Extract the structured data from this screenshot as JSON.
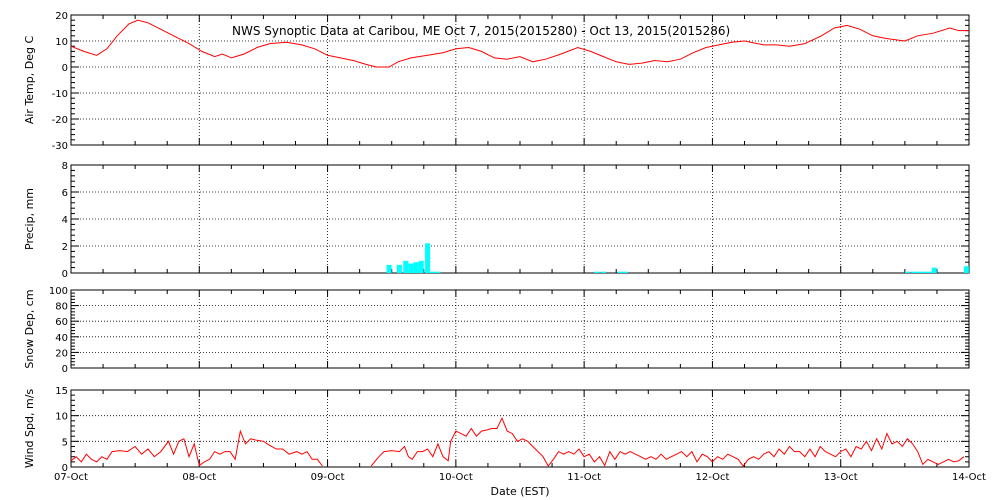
{
  "chart_data": {
    "title": "NWS Synoptic Data at Caribou, ME   Oct  7, 2015(2015280) - Oct 13, 2015(2015286)",
    "xlabel": "Date (EST)",
    "x_range_days": [
      0,
      7
    ],
    "x_tick_labels": [
      "07-Oct",
      "08-Oct",
      "09-Oct",
      "10-Oct",
      "11-Oct",
      "12-Oct",
      "13-Oct",
      "14-Oct"
    ],
    "panels": [
      {
        "id": "air_temp",
        "type": "line",
        "ylabel": "Air Temp, Deg C",
        "ylim": [
          -30,
          20
        ],
        "yticks": [
          20,
          10,
          0,
          -10,
          -20,
          -30
        ],
        "ytick_labels": [
          "20",
          "10",
          "0",
          "-10",
          "-20",
          "-30"
        ],
        "color": "#ff0000",
        "points": [
          [
            0.0,
            8
          ],
          [
            0.1,
            6
          ],
          [
            0.2,
            4.5
          ],
          [
            0.28,
            7
          ],
          [
            0.36,
            12
          ],
          [
            0.45,
            16.5
          ],
          [
            0.52,
            18
          ],
          [
            0.6,
            17
          ],
          [
            0.7,
            14.5
          ],
          [
            0.8,
            12
          ],
          [
            0.92,
            9
          ],
          [
            1.02,
            6
          ],
          [
            1.12,
            4
          ],
          [
            1.18,
            5
          ],
          [
            1.25,
            3.5
          ],
          [
            1.35,
            5
          ],
          [
            1.45,
            7.5
          ],
          [
            1.55,
            9
          ],
          [
            1.68,
            9.5
          ],
          [
            1.8,
            8.5
          ],
          [
            1.9,
            7
          ],
          [
            2.0,
            4.5
          ],
          [
            2.1,
            3.5
          ],
          [
            2.2,
            2.5
          ],
          [
            2.3,
            1
          ],
          [
            2.38,
            0
          ],
          [
            2.48,
            0
          ],
          [
            2.55,
            2
          ],
          [
            2.65,
            3.5
          ],
          [
            2.78,
            4.5
          ],
          [
            2.9,
            5.5
          ],
          [
            3.0,
            7
          ],
          [
            3.1,
            7.5
          ],
          [
            3.2,
            6
          ],
          [
            3.3,
            3.5
          ],
          [
            3.4,
            3
          ],
          [
            3.5,
            4
          ],
          [
            3.6,
            2
          ],
          [
            3.7,
            3
          ],
          [
            3.82,
            5
          ],
          [
            3.95,
            7.5
          ],
          [
            4.05,
            6
          ],
          [
            4.15,
            4
          ],
          [
            4.25,
            2
          ],
          [
            4.35,
            1
          ],
          [
            4.45,
            1.5
          ],
          [
            4.55,
            2.5
          ],
          [
            4.65,
            2
          ],
          [
            4.75,
            3
          ],
          [
            4.85,
            5.5
          ],
          [
            4.95,
            7.5
          ],
          [
            5.05,
            8.5
          ],
          [
            5.15,
            9.5
          ],
          [
            5.25,
            10
          ],
          [
            5.4,
            8.5
          ],
          [
            5.5,
            8.5
          ],
          [
            5.6,
            8
          ],
          [
            5.72,
            9
          ],
          [
            5.85,
            12
          ],
          [
            5.95,
            15
          ],
          [
            6.05,
            16
          ],
          [
            6.15,
            14.5
          ],
          [
            6.25,
            12
          ],
          [
            6.35,
            11
          ],
          [
            6.5,
            10
          ],
          [
            6.6,
            12
          ],
          [
            6.72,
            13
          ],
          [
            6.85,
            15
          ],
          [
            6.92,
            14
          ],
          [
            7.0,
            14
          ]
        ]
      },
      {
        "id": "precip",
        "type": "bar",
        "ylabel": "Precip, mm",
        "ylim": [
          0,
          8
        ],
        "yticks": [
          8,
          6,
          4,
          2,
          0
        ],
        "ytick_labels": [
          "8",
          "6",
          "4",
          "2",
          "0"
        ],
        "color": "#00ffff",
        "bar_width_days": 0.0417,
        "bars": [
          [
            2.46,
            0.6
          ],
          [
            2.54,
            0.6
          ],
          [
            2.59,
            0.9
          ],
          [
            2.63,
            0.7
          ],
          [
            2.67,
            0.8
          ],
          [
            2.71,
            0.9
          ],
          [
            2.76,
            2.2
          ],
          [
            2.8,
            0.1
          ],
          [
            2.84,
            0.1
          ],
          [
            4.08,
            0.1
          ],
          [
            4.13,
            0.1
          ],
          [
            4.26,
            0.1
          ],
          [
            4.3,
            0.1
          ],
          [
            6.5,
            0.1
          ],
          [
            6.55,
            0.1
          ],
          [
            6.59,
            0.1
          ],
          [
            6.63,
            0.1
          ],
          [
            6.67,
            0.1
          ],
          [
            6.71,
            0.4
          ],
          [
            6.96,
            0.5
          ]
        ]
      },
      {
        "id": "snow_depth",
        "type": "line",
        "ylabel": "Snow Dep, cm",
        "ylim": [
          0,
          100
        ],
        "yticks": [
          100,
          80,
          60,
          40,
          20,
          0
        ],
        "ytick_labels": [
          "100",
          "80",
          "60",
          "40",
          "20",
          "0"
        ],
        "color": "#ff0000",
        "points": []
      },
      {
        "id": "wind_speed",
        "type": "line",
        "ylabel": "Wind Spd, m/s",
        "ylim": [
          0,
          15
        ],
        "yticks": [
          15,
          10,
          5,
          0
        ],
        "ytick_labels": [
          "15",
          "10",
          "5",
          "0"
        ],
        "color": "#ff0000",
        "segments": [
          [
            [
              0.0,
              1.2
            ],
            [
              0.04,
              2
            ],
            [
              0.08,
              1
            ],
            [
              0.12,
              2.5
            ],
            [
              0.16,
              1.5
            ],
            [
              0.2,
              1
            ],
            [
              0.24,
              2
            ],
            [
              0.28,
              1.5
            ],
            [
              0.32,
              3
            ],
            [
              0.38,
              3.2
            ],
            [
              0.44,
              3
            ],
            [
              0.5,
              4
            ],
            [
              0.55,
              2.5
            ],
            [
              0.6,
              3.5
            ],
            [
              0.65,
              2
            ],
            [
              0.7,
              3
            ],
            [
              0.76,
              5
            ],
            [
              0.8,
              2.5
            ],
            [
              0.84,
              5
            ],
            [
              0.88,
              5.5
            ],
            [
              0.92,
              2
            ],
            [
              0.96,
              4.5
            ],
            [
              1.0,
              0.3
            ],
            [
              1.04,
              1
            ],
            [
              1.08,
              1.5
            ],
            [
              1.12,
              3
            ],
            [
              1.16,
              2.5
            ],
            [
              1.2,
              3
            ],
            [
              1.24,
              3
            ],
            [
              1.28,
              1.5
            ],
            [
              1.32,
              7
            ],
            [
              1.36,
              4.5
            ],
            [
              1.4,
              5.5
            ],
            [
              1.45,
              5.2
            ],
            [
              1.5,
              5
            ],
            [
              1.55,
              4.2
            ],
            [
              1.6,
              3.5
            ],
            [
              1.65,
              3.5
            ],
            [
              1.7,
              2.5
            ],
            [
              1.76,
              3
            ],
            [
              1.8,
              2.5
            ],
            [
              1.84,
              3
            ],
            [
              1.88,
              1.5
            ],
            [
              1.92,
              1.5
            ],
            [
              1.96,
              0.2
            ]
          ],
          [
            [
              2.34,
              0.2
            ],
            [
              2.4,
              2
            ],
            [
              2.44,
              3
            ],
            [
              2.5,
              3.2
            ],
            [
              2.56,
              3
            ],
            [
              2.6,
              4
            ],
            [
              2.63,
              2
            ],
            [
              2.66,
              1.5
            ],
            [
              2.7,
              3
            ],
            [
              2.74,
              3
            ],
            [
              2.78,
              3.5
            ],
            [
              2.82,
              2
            ],
            [
              2.86,
              4.5
            ],
            [
              2.9,
              2
            ],
            [
              2.94,
              1.2
            ],
            [
              2.96,
              5
            ],
            [
              3.0,
              7
            ],
            [
              3.04,
              6.5
            ],
            [
              3.08,
              6
            ],
            [
              3.12,
              7.5
            ],
            [
              3.16,
              6
            ],
            [
              3.2,
              7
            ],
            [
              3.24,
              7.2
            ],
            [
              3.28,
              7.5
            ],
            [
              3.32,
              7.5
            ],
            [
              3.36,
              9.5
            ],
            [
              3.4,
              7
            ],
            [
              3.44,
              6.5
            ],
            [
              3.48,
              5
            ],
            [
              3.52,
              5.5
            ],
            [
              3.56,
              5
            ],
            [
              3.6,
              4
            ],
            [
              3.64,
              3
            ],
            [
              3.68,
              2
            ],
            [
              3.72,
              0.2
            ],
            [
              3.76,
              1.5
            ],
            [
              3.8,
              3
            ],
            [
              3.84,
              2.5
            ],
            [
              3.88,
              3
            ],
            [
              3.92,
              2.5
            ],
            [
              3.96,
              3.5
            ],
            [
              4.0,
              2
            ],
            [
              4.04,
              2.5
            ],
            [
              4.08,
              1
            ],
            [
              4.12,
              2
            ],
            [
              4.16,
              0.3
            ],
            [
              4.2,
              3
            ],
            [
              4.24,
              1.5
            ],
            [
              4.28,
              3
            ],
            [
              4.32,
              2.5
            ],
            [
              4.36,
              3
            ],
            [
              4.4,
              2.5
            ],
            [
              4.44,
              2
            ],
            [
              4.48,
              1.5
            ],
            [
              4.52,
              2
            ],
            [
              4.56,
              1.5
            ],
            [
              4.6,
              2.5
            ],
            [
              4.64,
              1.5
            ],
            [
              4.68,
              2
            ],
            [
              4.72,
              2.5
            ],
            [
              4.76,
              3
            ],
            [
              4.8,
              2
            ],
            [
              4.84,
              3
            ],
            [
              4.88,
              1
            ],
            [
              4.92,
              2.5
            ],
            [
              4.96,
              2
            ],
            [
              5.0,
              1
            ],
            [
              5.04,
              2
            ],
            [
              5.08,
              1.5
            ],
            [
              5.12,
              2.5
            ],
            [
              5.16,
              2
            ],
            [
              5.2,
              1.5
            ],
            [
              5.24,
              0.2
            ],
            [
              5.28,
              1.5
            ],
            [
              5.32,
              2
            ],
            [
              5.36,
              1.5
            ],
            [
              5.4,
              2.5
            ],
            [
              5.44,
              3
            ],
            [
              5.48,
              2
            ],
            [
              5.52,
              3.5
            ],
            [
              5.56,
              2.5
            ],
            [
              5.6,
              4
            ],
            [
              5.64,
              3
            ],
            [
              5.68,
              3
            ],
            [
              5.72,
              2
            ],
            [
              5.76,
              3.5
            ],
            [
              5.8,
              2
            ],
            [
              5.84,
              4
            ],
            [
              5.88,
              3
            ],
            [
              5.92,
              2.5
            ],
            [
              5.96,
              2
            ],
            [
              6.0,
              3
            ],
            [
              6.04,
              3.5
            ],
            [
              6.08,
              2
            ],
            [
              6.12,
              4
            ],
            [
              6.16,
              3.5
            ],
            [
              6.2,
              5
            ],
            [
              6.24,
              3.2
            ],
            [
              6.28,
              5.5
            ],
            [
              6.32,
              3.5
            ],
            [
              6.36,
              6.5
            ],
            [
              6.4,
              4.5
            ],
            [
              6.44,
              5
            ],
            [
              6.48,
              4
            ],
            [
              6.52,
              5.5
            ],
            [
              6.56,
              4.5
            ],
            [
              6.6,
              3
            ],
            [
              6.64,
              0.5
            ],
            [
              6.68,
              1.5
            ],
            [
              6.72,
              1
            ],
            [
              6.76,
              0.5
            ],
            [
              6.8,
              1
            ],
            [
              6.84,
              1.5
            ],
            [
              6.88,
              1
            ],
            [
              6.92,
              1.2
            ],
            [
              6.96,
              2
            ]
          ]
        ]
      }
    ]
  }
}
